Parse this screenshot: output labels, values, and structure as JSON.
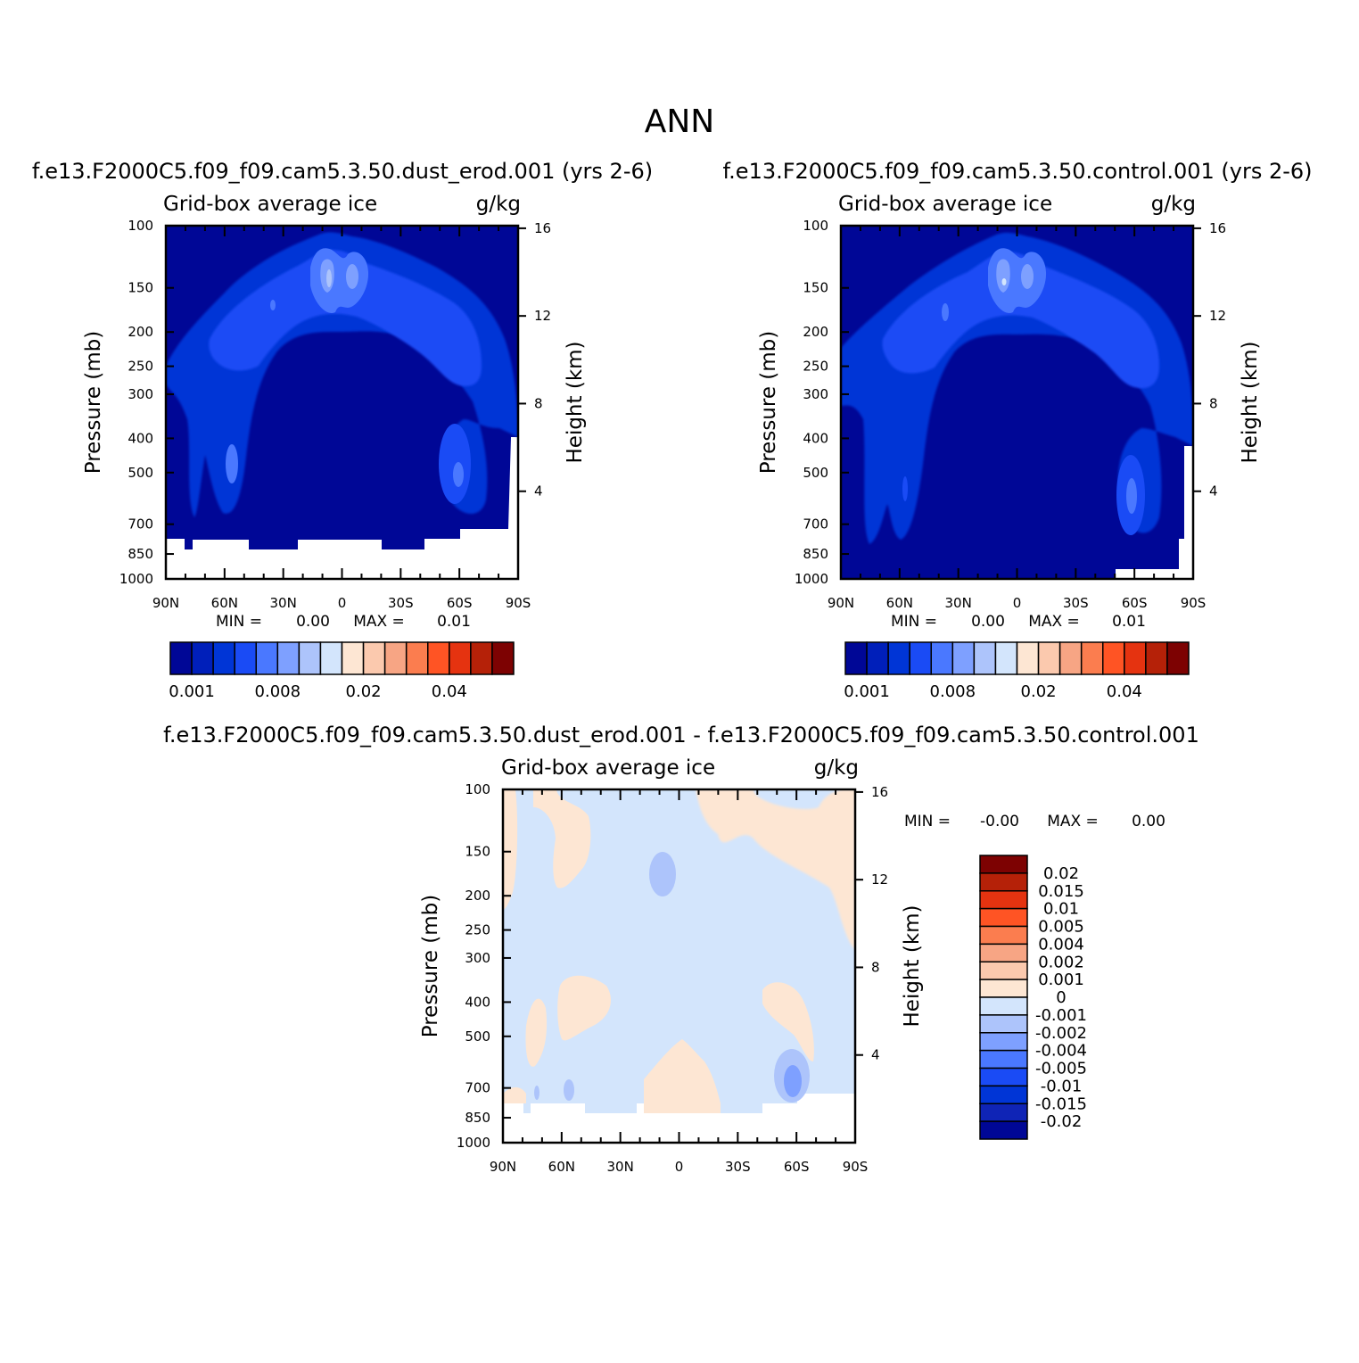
{
  "main_title": "ANN",
  "colors": {
    "seq": [
      "#000796",
      "#001fba",
      "#0035d6",
      "#1a4bf5",
      "#4a78ff",
      "#7ea0ff",
      "#adc4fb",
      "#d3e5fc",
      "#fde6d3",
      "#fbc9ae",
      "#f7a584",
      "#fb7d4f",
      "#ff5424",
      "#e53310",
      "#b52108",
      "#7d0202"
    ],
    "diff": [
      "#000796",
      "#0f24b6",
      "#0035d6",
      "#1a4bf5",
      "#4a78ff",
      "#7ea0ff",
      "#adc4fb",
      "#d3e5fc",
      "#fde6d3",
      "#fbc9ae",
      "#f7a584",
      "#fb7d4f",
      "#ff5424",
      "#e53310",
      "#b52108",
      "#7d0202"
    ]
  },
  "chart_data": [
    {
      "type": "contour",
      "title": "f.e13.F2000C5.f09_f09.cam5.3.50.dust_erod.001 (yrs 2-6)",
      "variable": "Grid-box average ice",
      "units": "g/kg",
      "ylabel": "Pressure (mb)",
      "y2label": "Height (km)",
      "x_ticks": [
        "90N",
        "60N",
        "30N",
        "0",
        "30S",
        "60S",
        "90S"
      ],
      "y_ticks": [
        "100",
        "150",
        "200",
        "250",
        "300",
        "400",
        "500",
        "700",
        "850",
        "1000"
      ],
      "y2_ticks": [
        "16",
        "12",
        "8",
        "4"
      ],
      "stats": {
        "min_label": "MIN =",
        "min": "0.00",
        "max_label": "MAX =",
        "max": "0.01"
      },
      "colorbar_labels": [
        "0.001",
        "0.008",
        "0.02",
        "0.04"
      ]
    },
    {
      "type": "contour",
      "title": "f.e13.F2000C5.f09_f09.cam5.3.50.control.001 (yrs 2-6)",
      "variable": "Grid-box average ice",
      "units": "g/kg",
      "ylabel": "Pressure (mb)",
      "y2label": "Height (km)",
      "x_ticks": [
        "90N",
        "60N",
        "30N",
        "0",
        "30S",
        "60S",
        "90S"
      ],
      "y_ticks": [
        "100",
        "150",
        "200",
        "250",
        "300",
        "400",
        "500",
        "700",
        "850",
        "1000"
      ],
      "y2_ticks": [
        "16",
        "12",
        "8",
        "4"
      ],
      "stats": {
        "min_label": "MIN =",
        "min": "0.00",
        "max_label": "MAX =",
        "max": "0.01"
      },
      "colorbar_labels": [
        "0.001",
        "0.008",
        "0.02",
        "0.04"
      ]
    },
    {
      "type": "contour",
      "title": "f.e13.F2000C5.f09_f09.cam5.3.50.dust_erod.001 - f.e13.F2000C5.f09_f09.cam5.3.50.control.001",
      "variable": "Grid-box average ice",
      "units": "g/kg",
      "ylabel": "Pressure (mb)",
      "y2label": "Height (km)",
      "x_ticks": [
        "90N",
        "60N",
        "30N",
        "0",
        "30S",
        "60S",
        "90S"
      ],
      "y_ticks": [
        "100",
        "150",
        "200",
        "250",
        "300",
        "400",
        "500",
        "700",
        "850",
        "1000"
      ],
      "y2_ticks": [
        "16",
        "12",
        "8",
        "4"
      ],
      "stats": {
        "min_label": "MIN =",
        "min": "-0.00",
        "max_label": "MAX =",
        "max": "0.00"
      },
      "colorbar_labels": [
        "0.02",
        "0.015",
        "0.01",
        "0.005",
        "0.004",
        "0.002",
        "0.001",
        "0",
        "-0.001",
        "-0.002",
        "-0.004",
        "-0.005",
        "-0.01",
        "-0.015",
        "-0.02"
      ]
    }
  ]
}
